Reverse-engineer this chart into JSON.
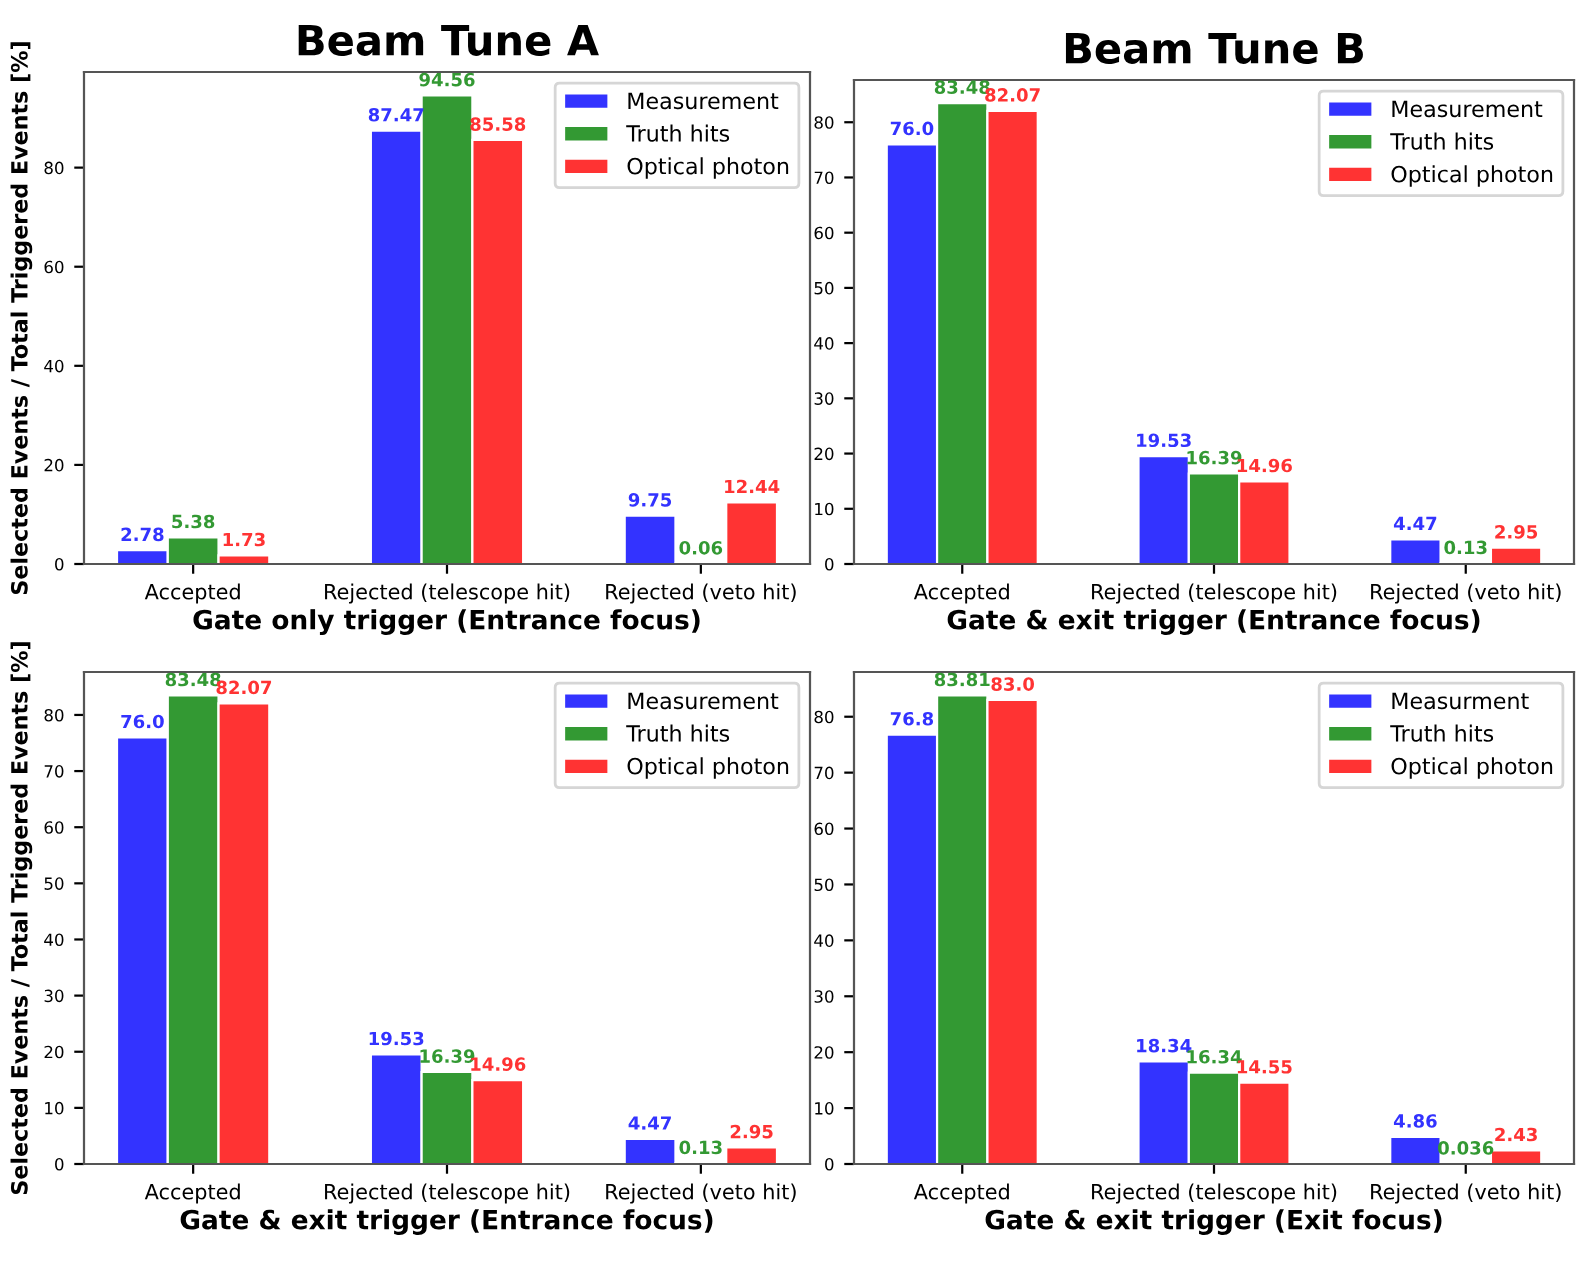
{
  "chart_data": [
    {
      "type": "bar",
      "title": "Beam Tune A",
      "xlabel": "Gate only trigger (Entrance focus)",
      "ylabel": "Selected Events / Total Triggered Events [%]",
      "categories": [
        "Accepted",
        "Rejected (telescope hit)",
        "Rejected (veto hit)"
      ],
      "ylim": [
        0,
        99.3
      ],
      "yticks": [
        0,
        20,
        40,
        60,
        80
      ],
      "legend": "top right",
      "grid": false,
      "series": [
        {
          "name": "Measurement",
          "color": "#3333ff",
          "values": [
            2.78,
            87.47,
            9.75
          ],
          "value_labels": [
            "2.78",
            "87.47",
            "9.75"
          ]
        },
        {
          "name": "Truth hits",
          "color": "#339933",
          "values": [
            5.38,
            94.56,
            0.06
          ],
          "value_labels": [
            "5.38",
            "94.56",
            "0.06"
          ]
        },
        {
          "name": "Optical photon",
          "color": "#ff3333",
          "values": [
            1.73,
            85.58,
            12.44
          ],
          "value_labels": [
            "1.73",
            "85.58",
            "12.44"
          ]
        }
      ]
    },
    {
      "type": "bar",
      "title": "Beam Tune B",
      "xlabel": "Gate & exit trigger (Entrance focus)",
      "categories": [
        "Accepted",
        "Rejected (telescope hit)",
        "Rejected (veto hit)"
      ],
      "ylim": [
        0,
        87.65
      ],
      "yticks": [
        0,
        10,
        20,
        30,
        40,
        50,
        60,
        70,
        80
      ],
      "legend": "top right",
      "grid": false,
      "series": [
        {
          "name": "Measurement",
          "color": "#3333ff",
          "values": [
            76.0,
            19.53,
            4.47
          ],
          "value_labels": [
            "76.0",
            "19.53",
            "4.47"
          ]
        },
        {
          "name": "Truth hits",
          "color": "#339933",
          "values": [
            83.48,
            16.39,
            0.13
          ],
          "value_labels": [
            "83.48",
            "16.39",
            "0.13"
          ]
        },
        {
          "name": "Optical photon",
          "color": "#ff3333",
          "values": [
            82.07,
            14.96,
            2.95
          ],
          "value_labels": [
            "82.07",
            "14.96",
            "2.95"
          ]
        }
      ]
    },
    {
      "type": "bar",
      "xlabel": "Gate & exit trigger (Entrance focus)",
      "ylabel": "Selected Events / Total Triggered Events [%]",
      "categories": [
        "Accepted",
        "Rejected (telescope hit)",
        "Rejected (veto hit)"
      ],
      "ylim": [
        0,
        87.65
      ],
      "yticks": [
        0,
        10,
        20,
        30,
        40,
        50,
        60,
        70,
        80
      ],
      "legend": "top right",
      "grid": false,
      "series": [
        {
          "name": "Measurement",
          "color": "#3333ff",
          "values": [
            76.0,
            19.53,
            4.47
          ],
          "value_labels": [
            "76.0",
            "19.53",
            "4.47"
          ]
        },
        {
          "name": "Truth hits",
          "color": "#339933",
          "values": [
            83.48,
            16.39,
            0.13
          ],
          "value_labels": [
            "83.48",
            "16.39",
            "0.13"
          ]
        },
        {
          "name": "Optical photon",
          "color": "#ff3333",
          "values": [
            82.07,
            14.96,
            2.95
          ],
          "value_labels": [
            "82.07",
            "14.96",
            "2.95"
          ]
        }
      ]
    },
    {
      "type": "bar",
      "xlabel": "Gate & exit trigger (Exit focus)",
      "categories": [
        "Accepted",
        "Rejected (telescope hit)",
        "Rejected (veto hit)"
      ],
      "ylim": [
        0,
        88.0
      ],
      "yticks": [
        0,
        10,
        20,
        30,
        40,
        50,
        60,
        70,
        80
      ],
      "legend": "top right",
      "grid": false,
      "series": [
        {
          "name": "Measurment",
          "color": "#3333ff",
          "values": [
            76.8,
            18.34,
            4.86
          ],
          "value_labels": [
            "76.8",
            "18.34",
            "4.86"
          ]
        },
        {
          "name": "Truth hits",
          "color": "#339933",
          "values": [
            83.81,
            16.34,
            0.036
          ],
          "value_labels": [
            "83.81",
            "16.34",
            "0.036"
          ]
        },
        {
          "name": "Optical photon",
          "color": "#ff3333",
          "values": [
            83.0,
            14.55,
            2.43
          ],
          "value_labels": [
            "83.0",
            "14.55",
            "2.43"
          ]
        }
      ]
    }
  ]
}
